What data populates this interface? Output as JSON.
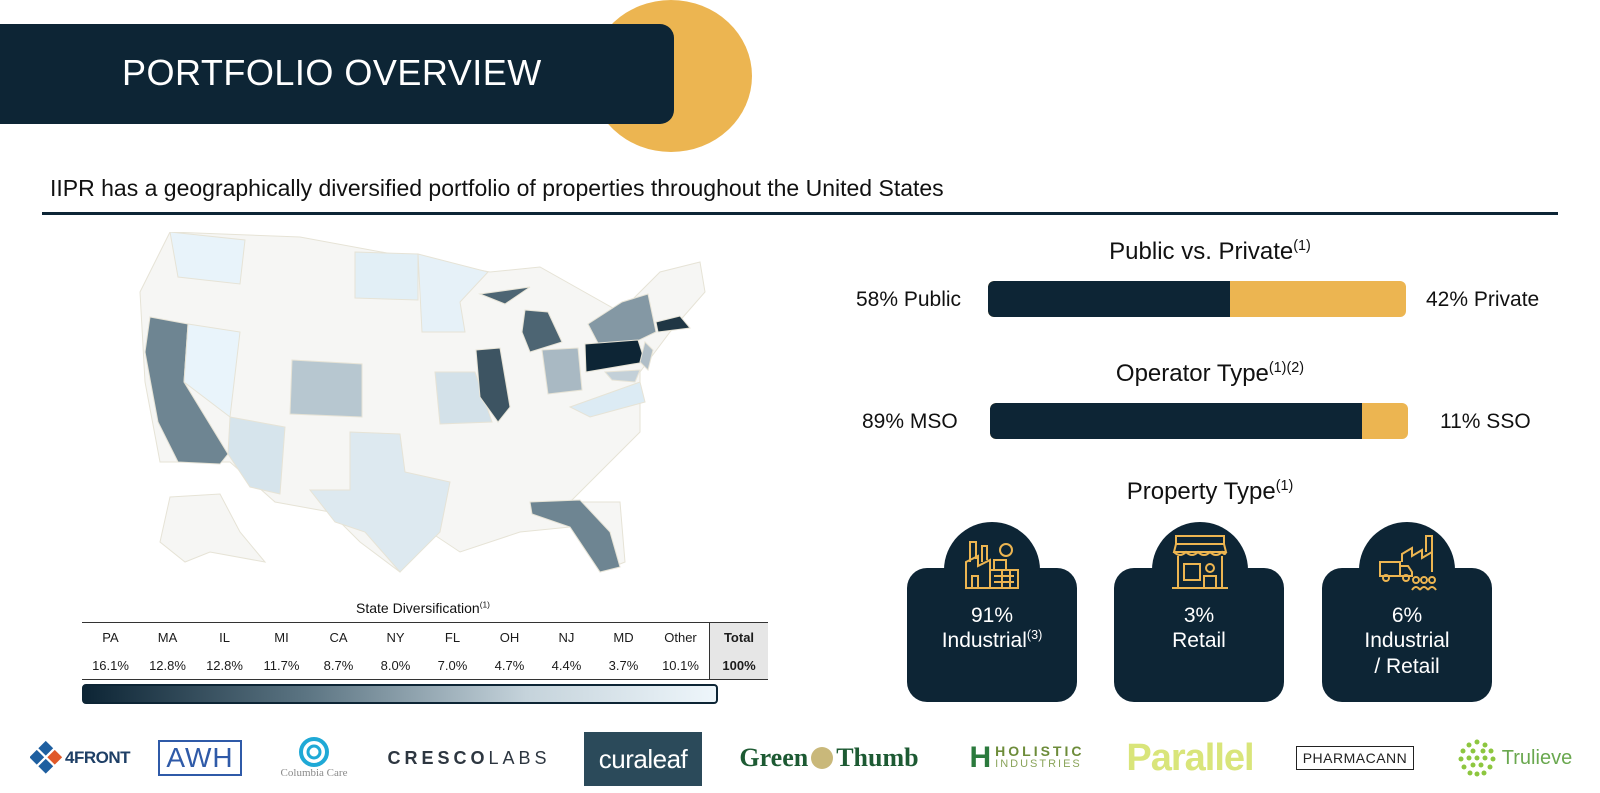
{
  "header": {
    "title": "PORTFOLIO OVERVIEW"
  },
  "subtitle": "IIPR has a geographically diversified portfolio of properties throughout the United States",
  "map": {
    "caption": "State Diversification",
    "caption_note": "(1)",
    "table": {
      "headers": [
        "PA",
        "MA",
        "IL",
        "MI",
        "CA",
        "NY",
        "FL",
        "OH",
        "NJ",
        "MD",
        "Other"
      ],
      "values": [
        "16.1%",
        "12.8%",
        "12.8%",
        "11.7%",
        "8.7%",
        "8.0%",
        "7.0%",
        "4.7%",
        "4.4%",
        "3.7%",
        "10.1%"
      ],
      "total_label": "Total",
      "total_value": "100%"
    },
    "colors": {
      "darkest": "#0d2535",
      "lightest": "#eef6fb",
      "neutral": "#f6f6f4"
    }
  },
  "public_private": {
    "title": "Public vs. Private",
    "note": "(1)",
    "left_label": "58% Public",
    "right_label": "42% Private",
    "fill_fraction": 0.58
  },
  "operator_type": {
    "title": "Operator Type",
    "note": "(1)(2)",
    "left_label": "89% MSO",
    "right_label": "11% SSO",
    "fill_fraction": 0.89
  },
  "property_type": {
    "title": "Property Type",
    "note": "(1)",
    "cards": [
      {
        "value": "91%",
        "label": "Industrial",
        "note": "(3)",
        "icon": "factory-icon"
      },
      {
        "value": "3%",
        "label": "Retail",
        "note": "",
        "icon": "storefront-icon"
      },
      {
        "value": "6%",
        "label": "Industrial",
        "label2": "/ Retail",
        "note": "",
        "icon": "truck-factory-icon"
      }
    ]
  },
  "logos": {
    "fourfront": "4FRONT",
    "awh": "AWH",
    "columbia": "Columbia Care",
    "cresco_a": "CRESCO",
    "cresco_b": "LABS",
    "curaleaf": "curaleaf",
    "green": "Green",
    "thumb": "Thumb",
    "holistic_a": "HOLISTIC",
    "holistic_b": "INDUSTRIES",
    "parallel": "Parallel",
    "pharmacann": "PHARMACANN",
    "trulieve": "Trulieve"
  },
  "colors": {
    "navy": "#0d2535",
    "gold": "#ecb551"
  }
}
